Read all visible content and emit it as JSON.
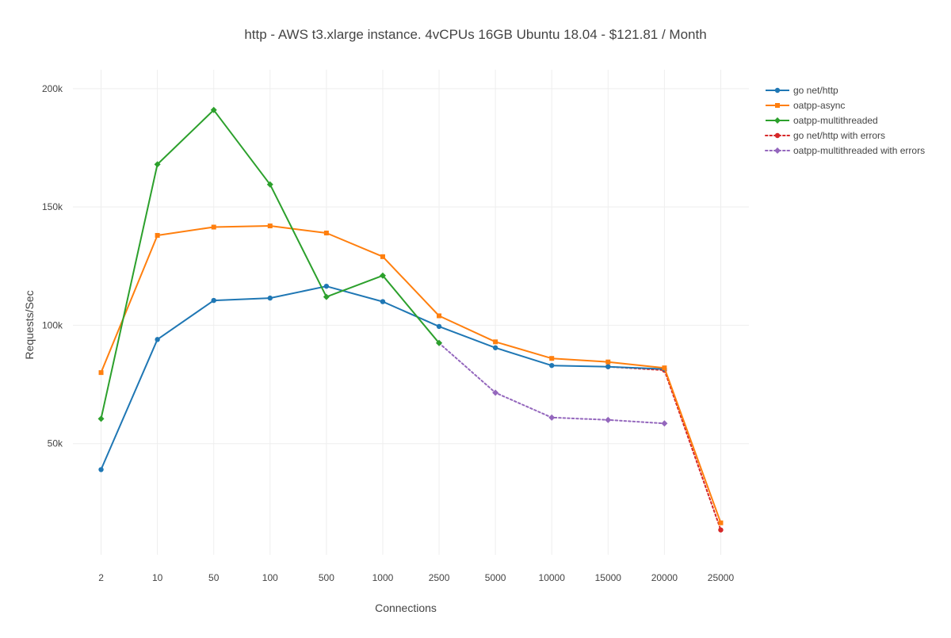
{
  "chart_data": {
    "type": "line",
    "title": "http - AWS t3.xlarge instance. 4vCPUs 16GB Ubuntu 18.04 - $121.81 / Month",
    "xlabel": "Connections",
    "ylabel": "Requests/Sec",
    "x_scale": "categorical",
    "categories": [
      "2",
      "10",
      "50",
      "100",
      "500",
      "1000",
      "2500",
      "5000",
      "10000",
      "15000",
      "20000",
      "25000"
    ],
    "ylim": [
      3000,
      208000
    ],
    "y_ticks": [
      50000,
      100000,
      150000,
      200000
    ],
    "y_tick_labels": [
      "50k",
      "100k",
      "150k",
      "200k"
    ],
    "grid": true,
    "legend_position": "top-right",
    "series": [
      {
        "name": "go net/http",
        "color": "#1f77b4",
        "marker": "circle",
        "dash": "solid",
        "values": [
          39000,
          94000,
          110500,
          111500,
          116500,
          110000,
          99500,
          90500,
          83000,
          82500,
          81500,
          null
        ]
      },
      {
        "name": "oatpp-async",
        "color": "#ff7f0e",
        "marker": "square",
        "dash": "solid",
        "values": [
          80000,
          138000,
          141500,
          142000,
          139000,
          129000,
          104000,
          93000,
          86000,
          84500,
          82000,
          16500
        ]
      },
      {
        "name": "oatpp-multithreaded",
        "color": "#2ca02c",
        "marker": "diamond",
        "dash": "solid",
        "values": [
          60500,
          168000,
          191000,
          159500,
          112000,
          121000,
          92500,
          null,
          null,
          null,
          null,
          null
        ]
      },
      {
        "name": "go net/http with errors",
        "color": "#d62728",
        "marker": "circle",
        "dash": "dot",
        "values": [
          null,
          null,
          null,
          null,
          null,
          null,
          null,
          null,
          null,
          82500,
          81000,
          13500
        ]
      },
      {
        "name": "oatpp-multithreaded with errors",
        "color": "#9467bd",
        "marker": "diamond",
        "dash": "dot",
        "values": [
          null,
          null,
          null,
          null,
          null,
          null,
          92500,
          71500,
          61000,
          60000,
          58500,
          null
        ]
      }
    ]
  }
}
